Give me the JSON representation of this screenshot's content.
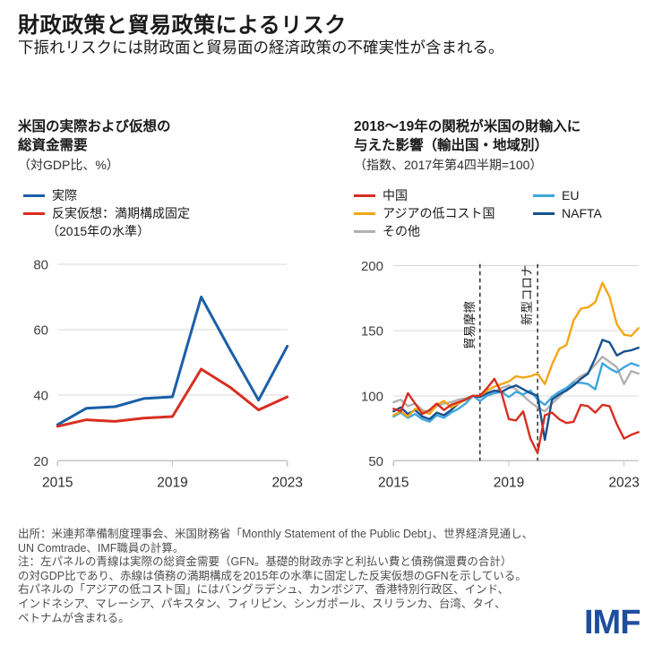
{
  "header": {
    "title": "財政政策と貿易政策によるリスク",
    "subtitle": "下振れリスクには財政面と貿易面の経済政策の不確実性が含まれる。"
  },
  "colors": {
    "actual_blue": "#1a5fa8",
    "red": "#d82e21",
    "yellow": "#f2a615",
    "gray": "#b1b1b1",
    "light_blue": "#3fa6dc",
    "navy": "#16508f",
    "gridline": "#d8d8d8",
    "axis": "#c4c4c4",
    "tick_text": "#404040",
    "logo_blue": "#1f4d9e"
  },
  "left_panel": {
    "title_line1": "米国の実際および仮想の",
    "title_line2": "総資金需要",
    "unit": "（対GDP比、%）",
    "legend": {
      "item1": "実際",
      "item2": "反実仮想：満期構成固定",
      "item2_line2": "（2015年の水準）"
    }
  },
  "right_panel": {
    "title_line1": "2018〜19年の関税が米国の財輸入に",
    "title_line2": "与えた影響（輸出国・地域別）",
    "unit": "（指数、2017年第4四半期=100）",
    "legend": {
      "china": "中国",
      "asia_lcc": "アジアの低コスト国",
      "other": "その他",
      "eu": "EU",
      "nafta": "NAFTA"
    }
  },
  "chart_data": [
    {
      "type": "line",
      "title": "米国の実際および仮想の総資金需要",
      "ylabel": "対GDP比、%",
      "x": [
        2015,
        2016,
        2017,
        2018,
        2019,
        2020,
        2021,
        2022,
        2023
      ],
      "series": [
        {
          "name": "実際",
          "color": "#1a5fa8",
          "values": [
            31,
            36,
            36.5,
            39,
            39.5,
            70,
            54,
            38.5,
            55
          ]
        },
        {
          "name": "反実仮想：満期構成固定（2015年の水準）",
          "color": "#d82e21",
          "values": [
            30.5,
            32.5,
            32,
            33,
            33.5,
            48,
            42.5,
            35.5,
            39.5
          ]
        }
      ],
      "xlim": [
        2015,
        2023
      ],
      "ylim": [
        20,
        80
      ],
      "yticks": [
        20,
        40,
        60,
        80
      ],
      "xticks": [
        2015,
        2019,
        2023
      ],
      "grid": "horizontal",
      "legend_position": "top-left"
    },
    {
      "type": "line",
      "title": "2018〜19年の関税が米国の財輸入に与えた影響（輸出国・地域別）",
      "ylabel": "指数、2017年第4四半期=100",
      "x_start": "2015Q1",
      "x_end": "2023Q3",
      "x_step": "quarter",
      "series": [
        {
          "name": "その他",
          "color": "#b1b1b1",
          "values": [
            95,
            97,
            92,
            94,
            89,
            87,
            92,
            94,
            95,
            97,
            98,
            100,
            99,
            101,
            103,
            106,
            108,
            105,
            100,
            95,
            91,
            88,
            94,
            99,
            106,
            111,
            115,
            118,
            124,
            130,
            126,
            122,
            109,
            119,
            117
          ]
        },
        {
          "name": "EU",
          "color": "#3fa6dc",
          "values": [
            84,
            87,
            83,
            86,
            82,
            80,
            85,
            83,
            87,
            90,
            94,
            100,
            96,
            100,
            102,
            103,
            99,
            103,
            101,
            104,
            97,
            93,
            99,
            103,
            106,
            110,
            110,
            109,
            105,
            125,
            121,
            118,
            122,
            125,
            123
          ]
        },
        {
          "name": "NAFTA",
          "color": "#16508f",
          "values": [
            88,
            91,
            86,
            89,
            84,
            82,
            87,
            85,
            89,
            94,
            97,
            100,
            99,
            102,
            104,
            103,
            106,
            108,
            105,
            102,
            100,
            66,
            97,
            101,
            104,
            108,
            113,
            117,
            129,
            143,
            141,
            131,
            134,
            135,
            137
          ]
        },
        {
          "name": "アジアの低コスト国",
          "color": "#f2a615",
          "values": [
            85,
            88,
            84,
            90,
            88,
            86,
            93,
            96,
            91,
            94,
            97,
            100,
            100,
            104,
            107,
            109,
            111,
            115,
            114,
            115,
            117,
            109,
            124,
            136,
            139,
            158,
            167,
            168,
            172,
            187,
            176,
            155,
            147,
            146,
            152
          ]
        },
        {
          "name": "中国",
          "color": "#d82e21",
          "values": [
            90,
            88,
            102,
            94,
            86,
            89,
            94,
            89,
            93,
            95,
            97,
            100,
            100,
            106,
            113,
            102,
            82,
            81,
            88,
            67,
            56,
            85,
            87,
            82,
            79,
            80,
            93,
            92,
            87,
            93,
            92,
            78,
            67,
            70,
            72
          ]
        }
      ],
      "xlim": [
        2015,
        2023.5
      ],
      "ylim": [
        50,
        200
      ],
      "yticks": [
        50,
        100,
        150,
        200
      ],
      "xticks": [
        2015,
        2019,
        2023
      ],
      "grid": "horizontal",
      "vlines": [
        {
          "x": 2018.0,
          "label": "貿易摩擦"
        },
        {
          "x": 2020.0,
          "label": "新型コロナ"
        }
      ],
      "legend_position": "top"
    }
  ],
  "footer": {
    "lines": [
      "出所：米連邦準備制度理事会、米国財務省「Monthly Statement of the Public Debt」、世界経済見通し、",
      "UN Comtrade、IMF職員の計算。",
      "注：左パネルの青線は実際の総資金需要（GFN。基礎的財政赤字と利払い費と債務償還費の合計）",
      "の対GDP比であり、赤線は債務の満期構成を2015年の水準に固定した反実仮想のGFNを示している。",
      "右パネルの「アジアの低コスト国」にはバングラデシュ、カンボジア、香港特別行政区、インド、",
      "インドネシア、マレーシア、パキスタン、フィリピン、シンガポール、スリランカ、台湾、タイ、",
      "ベトナムが含まれる。"
    ]
  },
  "logo": "IMF"
}
